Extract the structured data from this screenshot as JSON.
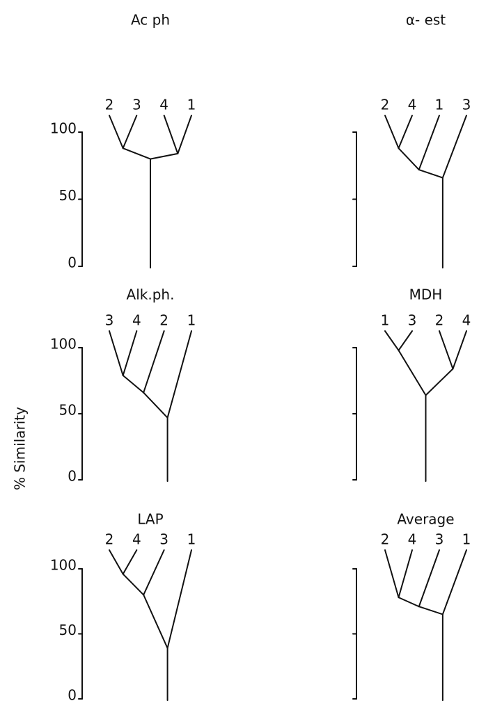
{
  "ylabel": "% Similarity",
  "yticks": [
    0,
    50,
    100
  ],
  "panels": [
    {
      "title": "Ac ph",
      "tree": {
        "similarity": 80,
        "branches": [
          {
            "similarity": 88,
            "branches": [
              "2",
              "3"
            ]
          },
          {
            "similarity": 84,
            "branches": [
              "4",
              "1"
            ]
          }
        ]
      }
    },
    {
      "title": "α- est",
      "tree": {
        "similarity": 66,
        "branches": [
          {
            "similarity": 72,
            "branches": [
              {
                "similarity": 88,
                "branches": [
                  "2",
                  "4"
                ]
              },
              "1"
            ]
          },
          "3"
        ]
      }
    },
    {
      "title": "Alk.ph.",
      "tree": {
        "similarity": 47,
        "branches": [
          {
            "similarity": 66,
            "branches": [
              {
                "similarity": 79,
                "branches": [
                  "3",
                  "4"
                ]
              },
              "2"
            ]
          },
          "1"
        ]
      }
    },
    {
      "title": "MDH",
      "tree": {
        "similarity": 64,
        "branches": [
          {
            "similarity": 98,
            "branches": [
              "1",
              "3"
            ]
          },
          {
            "similarity": 84,
            "branches": [
              "2",
              "4"
            ]
          }
        ]
      }
    },
    {
      "title": "LAP",
      "tree": {
        "similarity": 39,
        "branches": [
          {
            "similarity": 80,
            "branches": [
              {
                "similarity": 96,
                "branches": [
                  "2",
                  "4"
                ]
              },
              "3"
            ]
          },
          "1"
        ]
      }
    },
    {
      "title": "Average",
      "tree": {
        "similarity": 65,
        "branches": [
          {
            "similarity": 71,
            "branches": [
              {
                "similarity": 78,
                "branches": [
                  "2",
                  "4"
                ]
              },
              "3"
            ]
          },
          "1"
        ]
      }
    }
  ]
}
